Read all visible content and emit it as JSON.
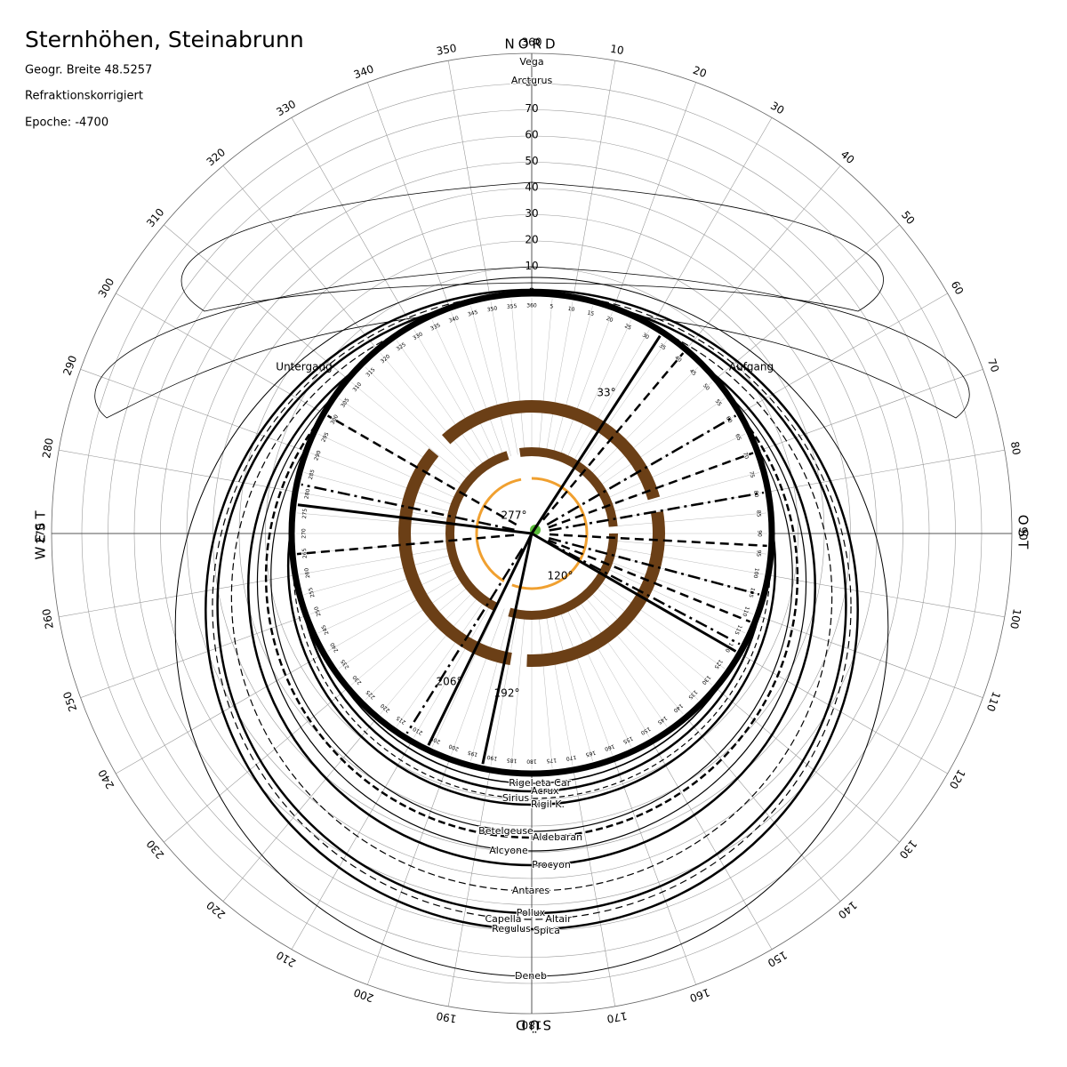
{
  "header": {
    "title": "Sternhöhen, Steinabrunn",
    "latitude": "Geogr. Breite 48.5257",
    "refraction": "Refraktionskorrigiert",
    "epoch": "Epoche: -4700"
  },
  "compass": {
    "north": "NORD",
    "east": "OST",
    "south": "SÜD",
    "west": "WEST"
  },
  "azimuth_labels": [
    10,
    20,
    30,
    40,
    50,
    60,
    70,
    80,
    90,
    100,
    110,
    120,
    130,
    140,
    150,
    160,
    170,
    180,
    190,
    200,
    210,
    220,
    230,
    240,
    250,
    260,
    270,
    280,
    290,
    300,
    310,
    320,
    330,
    340,
    350,
    360
  ],
  "altitude_labels": [
    0,
    10,
    20,
    30,
    40,
    50,
    60,
    70,
    80
  ],
  "inner_scale": [
    5,
    10,
    15,
    20,
    25,
    30,
    35,
    40,
    45,
    50,
    55,
    60,
    65,
    70,
    75,
    80,
    85,
    90,
    95,
    100,
    105,
    110,
    115,
    120,
    125,
    130,
    135,
    140,
    145,
    150,
    155,
    160,
    165,
    170,
    175,
    180,
    185,
    190,
    195,
    200,
    205,
    210,
    215,
    220,
    225,
    230,
    235,
    240,
    245,
    250,
    255,
    260,
    265,
    270,
    275,
    280,
    285,
    290,
    295,
    300,
    305,
    310,
    315,
    320,
    325,
    330,
    335,
    340,
    345,
    350,
    355,
    360
  ],
  "horizon_events": {
    "set": "Untergang",
    "rise": "Aufgang"
  },
  "alignments": [
    {
      "label": "33°",
      "azimuth": 33
    },
    {
      "label": "120°",
      "azimuth": 120
    },
    {
      "label": "192°",
      "azimuth": 192
    },
    {
      "label": "206°",
      "azimuth": 206
    },
    {
      "label": "277°",
      "azimuth": 277
    }
  ],
  "stars": [
    "Vega",
    "Arcturus",
    "Rigel",
    "eta Car",
    "Acrux",
    "Sirius",
    "Rigil K.",
    "Betelgeuse",
    "Aldebaran",
    "Alcyone",
    "Procyon",
    "Antares",
    "Pollux",
    "Capella",
    "Altair",
    "Regulus",
    "Spica",
    "Deneb"
  ]
}
